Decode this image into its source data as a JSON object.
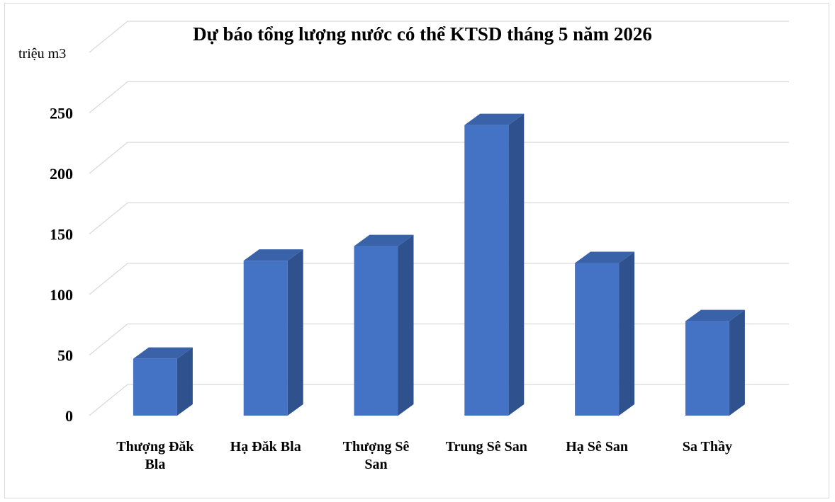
{
  "chart_data": {
    "type": "bar",
    "title": "Dự báo tổng lượng nước có thể KTSD tháng 5 năm 2026",
    "ylabel": "triệu m3",
    "xlabel": "",
    "categories": [
      [
        "Thượng Đăk",
        "Bla"
      ],
      [
        "Hạ Đăk Bla"
      ],
      [
        "Thượng Sê",
        "San"
      ],
      [
        "Trung Sê San"
      ],
      [
        "Hạ Sê San"
      ],
      [
        "Sa Thầy"
      ]
    ],
    "values": [
      47,
      128,
      140,
      240,
      126,
      78
    ],
    "ylim": [
      0,
      275
    ],
    "yticks": [
      "0",
      "50",
      "100",
      "150",
      "200",
      "250"
    ],
    "grid": true,
    "style": "3d-column",
    "colors": {
      "front": "#4472c4",
      "side": "#2f528f",
      "top": "#3a62a8"
    }
  }
}
